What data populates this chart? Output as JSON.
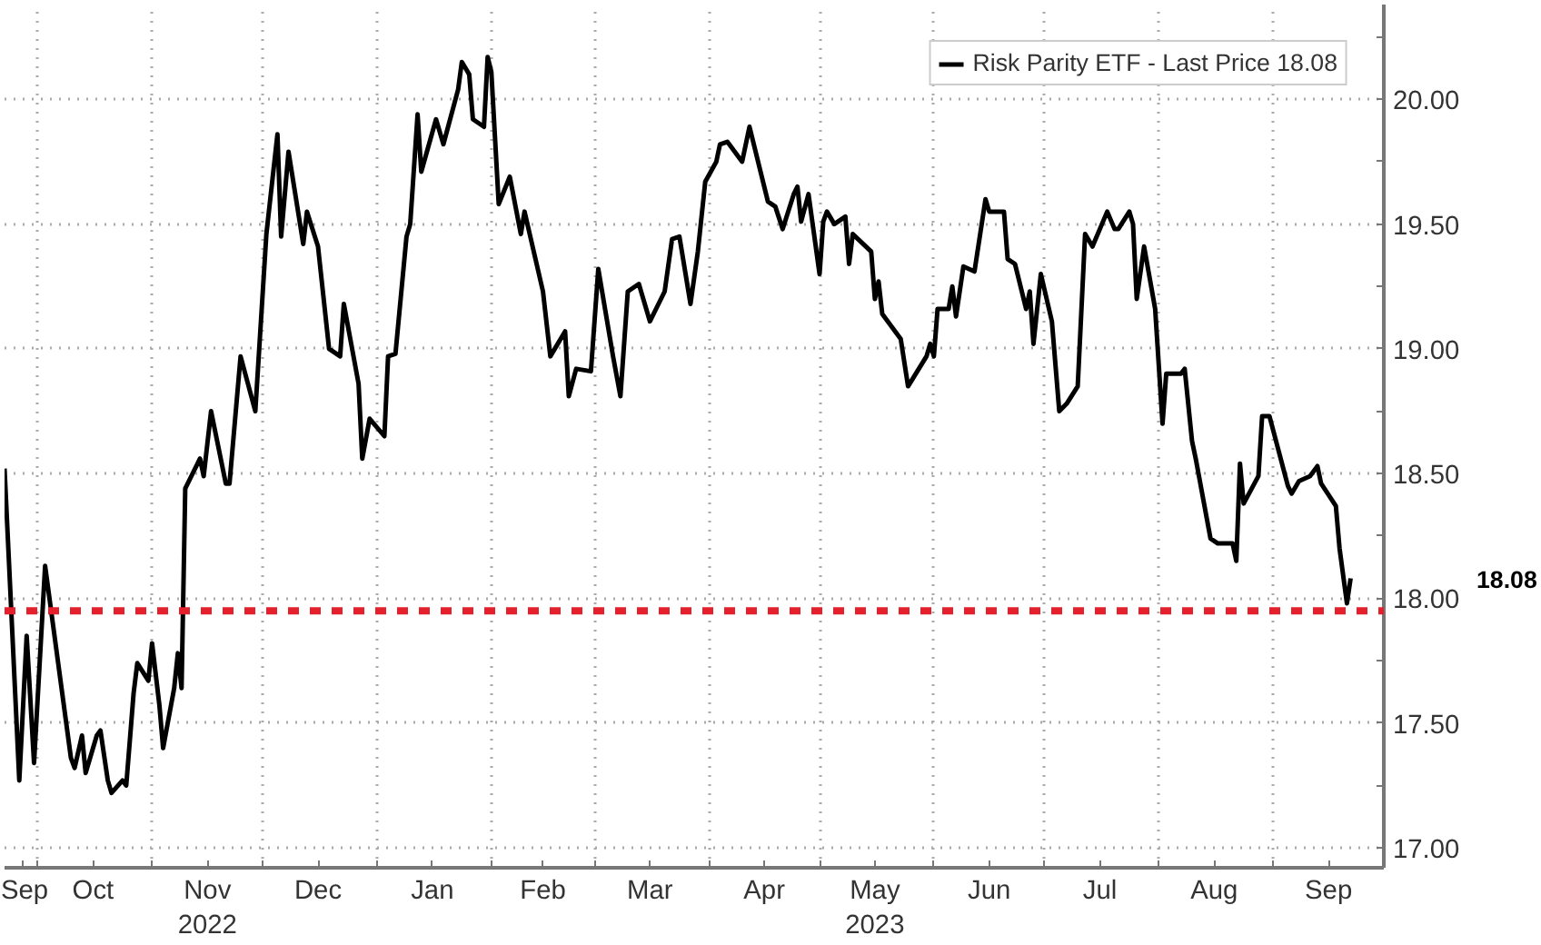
{
  "chart_data": {
    "type": "line",
    "x": [
      "2022-09-22",
      "2022-09-26",
      "2022-09-28",
      "2022-09-30",
      "2022-10-03",
      "2022-10-10",
      "2022-10-11",
      "2022-10-13",
      "2022-10-14",
      "2022-10-17",
      "2022-10-18",
      "2022-10-20",
      "2022-10-21",
      "2022-10-24",
      "2022-10-25",
      "2022-10-27",
      "2022-10-28",
      "2022-10-31",
      "2022-11-01",
      "2022-11-03",
      "2022-11-04",
      "2022-11-07",
      "2022-11-08",
      "2022-11-09",
      "2022-11-10",
      "2022-11-14",
      "2022-11-15",
      "2022-11-17",
      "2022-11-21",
      "2022-11-22",
      "2022-11-25",
      "2022-11-29",
      "2022-12-02",
      "2022-12-05",
      "2022-12-06",
      "2022-12-08",
      "2022-12-12",
      "2022-12-13",
      "2022-12-16",
      "2022-12-19",
      "2022-12-22",
      "2022-12-23",
      "2022-12-27",
      "2022-12-28",
      "2022-12-30",
      "2023-01-03",
      "2023-01-04",
      "2023-01-06",
      "2023-01-09",
      "2023-01-10",
      "2023-01-12",
      "2023-01-13",
      "2023-01-17",
      "2023-01-19",
      "2023-01-23",
      "2023-01-24",
      "2023-01-26",
      "2023-01-27",
      "2023-01-30",
      "2023-01-31",
      "2023-02-01",
      "2023-02-03",
      "2023-02-06",
      "2023-02-09",
      "2023-02-10",
      "2023-02-15",
      "2023-02-17",
      "2023-02-21",
      "2023-02-22",
      "2023-02-24",
      "2023-02-28",
      "2023-03-02",
      "2023-03-06",
      "2023-03-08",
      "2023-03-10",
      "2023-03-13",
      "2023-03-16",
      "2023-03-20",
      "2023-03-22",
      "2023-03-24",
      "2023-03-27",
      "2023-03-29",
      "2023-03-31",
      "2023-04-03",
      "2023-04-04",
      "2023-04-06",
      "2023-04-10",
      "2023-04-11",
      "2023-04-12",
      "2023-04-17",
      "2023-04-19",
      "2023-04-21",
      "2023-04-24",
      "2023-04-25",
      "2023-04-26",
      "2023-04-28",
      "2023-05-01",
      "2023-05-02",
      "2023-05-03",
      "2023-05-05",
      "2023-05-08",
      "2023-05-09",
      "2023-05-10",
      "2023-05-15",
      "2023-05-16",
      "2023-05-17",
      "2023-05-18",
      "2023-05-22",
      "2023-05-23",
      "2023-05-25",
      "2023-05-30",
      "2023-05-31",
      "2023-06-01",
      "2023-06-02",
      "2023-06-05",
      "2023-06-06",
      "2023-06-07",
      "2023-06-09",
      "2023-06-12",
      "2023-06-15",
      "2023-06-16",
      "2023-06-20",
      "2023-06-21",
      "2023-06-23",
      "2023-06-26",
      "2023-06-27",
      "2023-06-28",
      "2023-06-30",
      "2023-07-03",
      "2023-07-05",
      "2023-07-07",
      "2023-07-10",
      "2023-07-12",
      "2023-07-14",
      "2023-07-18",
      "2023-07-20",
      "2023-07-21",
      "2023-07-24",
      "2023-07-25",
      "2023-07-26",
      "2023-07-28",
      "2023-07-31",
      "2023-08-02",
      "2023-08-03",
      "2023-08-07",
      "2023-08-08",
      "2023-08-10",
      "2023-08-11",
      "2023-08-15",
      "2023-08-17",
      "2023-08-21",
      "2023-08-22",
      "2023-08-23",
      "2023-08-24",
      "2023-08-28",
      "2023-08-29",
      "2023-08-31",
      "2023-09-05",
      "2023-09-06",
      "2023-09-08",
      "2023-09-11",
      "2023-09-13",
      "2023-09-14",
      "2023-09-18",
      "2023-09-19",
      "2023-09-21",
      "2023-09-22"
    ],
    "series": [
      {
        "name": "Risk Parity ETF - Last Price 18.08",
        "color": "#000000",
        "values": [
          18.52,
          17.27,
          17.85,
          17.34,
          18.13,
          17.36,
          17.32,
          17.45,
          17.3,
          17.45,
          17.47,
          17.27,
          17.22,
          17.27,
          17.25,
          17.62,
          17.74,
          17.67,
          17.82,
          17.57,
          17.4,
          17.64,
          17.78,
          17.64,
          18.44,
          18.56,
          18.49,
          18.75,
          18.46,
          18.46,
          18.97,
          18.75,
          19.46,
          19.86,
          19.45,
          19.79,
          19.42,
          19.55,
          19.41,
          19.0,
          18.97,
          19.18,
          18.86,
          18.56,
          18.72,
          18.65,
          18.97,
          18.98,
          19.45,
          19.5,
          19.94,
          19.71,
          19.92,
          19.82,
          20.04,
          20.15,
          20.1,
          19.92,
          19.89,
          20.17,
          20.11,
          19.58,
          19.69,
          19.46,
          19.55,
          19.23,
          18.97,
          19.07,
          18.81,
          18.92,
          18.91,
          19.32,
          18.97,
          18.81,
          19.23,
          19.26,
          19.11,
          19.23,
          19.44,
          19.45,
          19.18,
          19.39,
          19.67,
          19.75,
          19.82,
          19.83,
          19.75,
          19.82,
          19.89,
          19.59,
          19.57,
          19.48,
          19.62,
          19.65,
          19.51,
          19.62,
          19.3,
          19.51,
          19.55,
          19.5,
          19.53,
          19.34,
          19.46,
          19.39,
          19.2,
          19.27,
          19.14,
          19.06,
          19.04,
          18.85,
          18.97,
          19.02,
          18.97,
          19.16,
          19.16,
          19.25,
          19.13,
          19.33,
          19.31,
          19.6,
          19.55,
          19.55,
          19.36,
          19.34,
          19.16,
          19.23,
          19.02,
          19.3,
          19.11,
          18.75,
          18.78,
          18.85,
          19.46,
          19.41,
          19.55,
          19.48,
          19.48,
          19.55,
          19.5,
          19.2,
          19.41,
          19.16,
          18.7,
          18.9,
          18.9,
          18.92,
          18.63,
          18.56,
          18.24,
          18.22,
          18.22,
          18.15,
          18.54,
          18.38,
          18.49,
          18.73,
          18.73,
          18.45,
          18.42,
          18.47,
          18.49,
          18.53,
          18.46,
          18.37,
          18.2,
          17.98,
          18.08
        ]
      }
    ],
    "xlim": [
      "2022-09-22",
      "2023-10-01"
    ],
    "xticks": [
      {
        "value": "2022-09-27",
        "label": "Sep"
      },
      {
        "value": "2022-10-01",
        "label": null
      },
      {
        "value": "2022-10-16",
        "label": "Oct"
      },
      {
        "value": "2022-11-01",
        "label": null
      },
      {
        "value": "2022-11-16",
        "label": "Nov\n2022"
      },
      {
        "value": "2022-12-01",
        "label": null
      },
      {
        "value": "2022-12-16",
        "label": "Dec"
      },
      {
        "value": "2023-01-01",
        "label": null
      },
      {
        "value": "2023-01-16",
        "label": "Jan"
      },
      {
        "value": "2023-02-01",
        "label": null
      },
      {
        "value": "2023-02-15",
        "label": "Feb"
      },
      {
        "value": "2023-03-01",
        "label": null
      },
      {
        "value": "2023-03-16",
        "label": "Mar"
      },
      {
        "value": "2023-04-01",
        "label": null
      },
      {
        "value": "2023-04-16",
        "label": "Apr"
      },
      {
        "value": "2023-05-01",
        "label": null
      },
      {
        "value": "2023-05-16",
        "label": "May\n2023"
      },
      {
        "value": "2023-06-01",
        "label": null
      },
      {
        "value": "2023-06-16",
        "label": "Jun"
      },
      {
        "value": "2023-07-01",
        "label": null
      },
      {
        "value": "2023-07-16",
        "label": "Jul"
      },
      {
        "value": "2023-08-01",
        "label": null
      },
      {
        "value": "2023-08-16",
        "label": "Aug"
      },
      {
        "value": "2023-09-01",
        "label": null
      },
      {
        "value": "2023-09-16",
        "label": "Sep"
      }
    ],
    "ylim": [
      16.92,
      20.38
    ],
    "yticks": [
      {
        "value": 17,
        "label": "17.00"
      },
      {
        "value": 17.25,
        "label": null
      },
      {
        "value": 17.5,
        "label": "17.50"
      },
      {
        "value": 17.75,
        "label": null
      },
      {
        "value": 18,
        "label": "18.00"
      },
      {
        "value": 18.25,
        "label": null
      },
      {
        "value": 18.5,
        "label": "18.50"
      },
      {
        "value": 18.75,
        "label": null
      },
      {
        "value": 19,
        "label": "19.00"
      },
      {
        "value": 19.25,
        "label": null
      },
      {
        "value": 19.5,
        "label": "19.50"
      },
      {
        "value": 19.75,
        "label": null
      },
      {
        "value": 20,
        "label": "20.00"
      },
      {
        "value": 20.25,
        "label": null
      }
    ],
    "ref_lines": [
      {
        "axis": "y",
        "value": 17.95,
        "color": "#e3202c",
        "line_style": "dashed"
      }
    ],
    "annotations": [
      "18.08"
    ],
    "grid": true,
    "legend": "top right",
    "marker": "none",
    "line_style": "solid"
  }
}
